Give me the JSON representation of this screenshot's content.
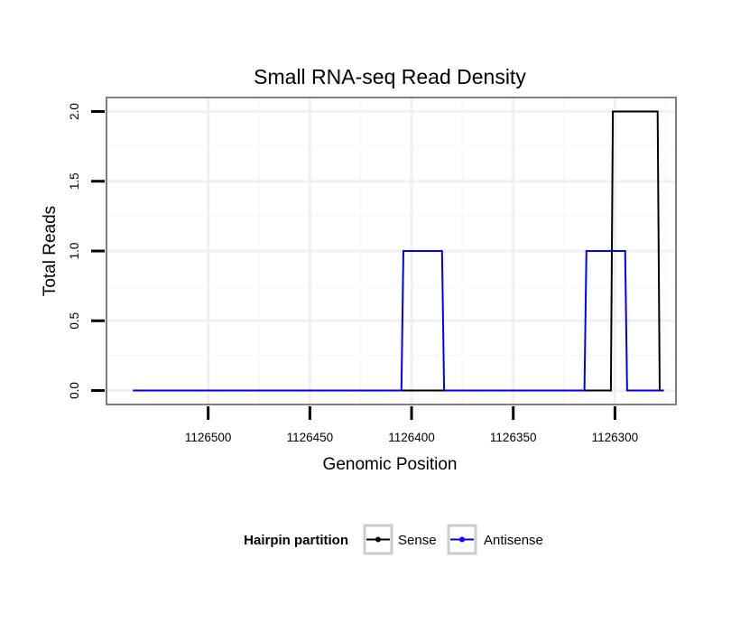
{
  "chart_data": {
    "type": "line",
    "title": "Small RNA-seq Read Density",
    "xlabel": "Genomic Position",
    "ylabel": "Total Reads",
    "x_reversed": true,
    "xlim": [
      1126550,
      1126270
    ],
    "ylim": [
      -0.1,
      2.1
    ],
    "x_ticks": [
      1126500,
      1126450,
      1126400,
      1126350,
      1126300
    ],
    "x_tick_labels": [
      "1126500",
      "1126450",
      "1126400",
      "1126350",
      "1126300"
    ],
    "y_ticks": [
      0.0,
      0.5,
      1.0,
      1.5,
      2.0
    ],
    "y_tick_labels": [
      "0.0",
      "0.5",
      "1.0",
      "1.5",
      "2.0"
    ],
    "grid": true,
    "legend": {
      "title": "Hairpin partition",
      "position": "bottom"
    },
    "series": [
      {
        "name": "Sense",
        "color": "#000000",
        "x": [
          1126537,
          1126302,
          1126301,
          1126279,
          1126278,
          1126276
        ],
        "y": [
          0,
          0,
          2,
          2,
          0,
          0
        ]
      },
      {
        "name": "Antisense",
        "color": "#0000ff",
        "x": [
          1126537,
          1126405,
          1126404,
          1126385,
          1126384,
          1126315,
          1126314,
          1126295,
          1126294,
          1126277
        ],
        "y": [
          0,
          0,
          1,
          1,
          0,
          0,
          1,
          1,
          0,
          0
        ]
      }
    ]
  }
}
